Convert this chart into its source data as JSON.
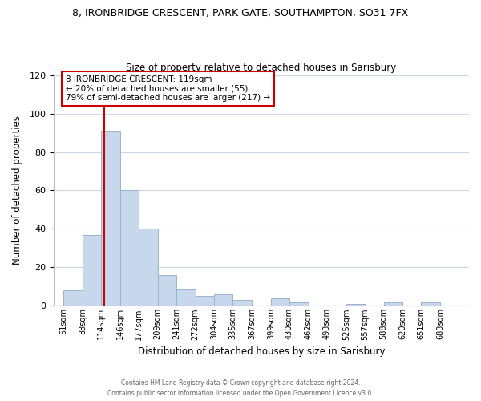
{
  "title1": "8, IRONBRIDGE CRESCENT, PARK GATE, SOUTHAMPTON, SO31 7FX",
  "title2": "Size of property relative to detached houses in Sarisbury",
  "xlabel": "Distribution of detached houses by size in Sarisbury",
  "ylabel": "Number of detached properties",
  "bar_color": "#c8d8ec",
  "bar_edge_color": "#9ab4cc",
  "bin_labels": [
    "51sqm",
    "83sqm",
    "114sqm",
    "146sqm",
    "177sqm",
    "209sqm",
    "241sqm",
    "272sqm",
    "304sqm",
    "335sqm",
    "367sqm",
    "399sqm",
    "430sqm",
    "462sqm",
    "493sqm",
    "525sqm",
    "557sqm",
    "588sqm",
    "620sqm",
    "651sqm",
    "683sqm"
  ],
  "bar_heights": [
    8,
    37,
    91,
    60,
    40,
    16,
    9,
    5,
    6,
    3,
    0,
    4,
    2,
    0,
    0,
    1,
    0,
    2,
    0,
    2,
    0
  ],
  "bin_edges": [
    51,
    83,
    114,
    146,
    177,
    209,
    241,
    272,
    304,
    335,
    367,
    399,
    430,
    462,
    493,
    525,
    557,
    588,
    620,
    651,
    683,
    715
  ],
  "property_line_x": 119,
  "ylim": [
    0,
    120
  ],
  "yticks": [
    0,
    20,
    40,
    60,
    80,
    100,
    120
  ],
  "annotation_line1": "8 IRONBRIDGE CRESCENT: 119sqm",
  "annotation_line2": "← 20% of detached houses are smaller (55)",
  "annotation_line3": "79% of semi-detached houses are larger (217) →",
  "red_line_color": "#cc0000",
  "annotation_rect_color": "#cc0000",
  "footer_line1": "Contains HM Land Registry data © Crown copyright and database right 2024.",
  "footer_line2": "Contains public sector information licensed under the Open Government Licence v3.0.",
  "background_color": "#ffffff",
  "grid_color": "#ccd8e8"
}
